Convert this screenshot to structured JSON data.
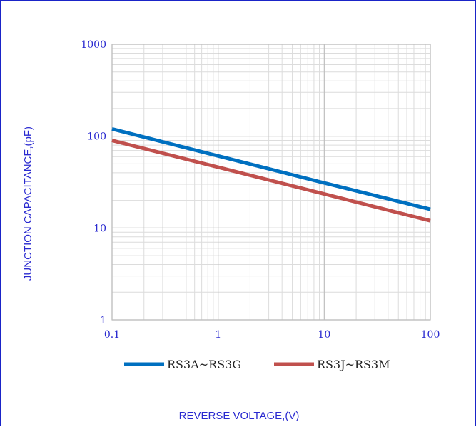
{
  "chart_data": {
    "type": "line",
    "xscale": "log",
    "yscale": "log",
    "xlim": [
      0.1,
      100
    ],
    "ylim": [
      1,
      1000
    ],
    "x_ticks": [
      "0.1",
      "1",
      "10",
      "100"
    ],
    "y_ticks": [
      "1",
      "10",
      "100",
      "1000"
    ],
    "xlabel": "REVERSE VOLTAGE,(V)",
    "ylabel": "JUNCTION CAPACITANCE,(pF)",
    "grid": true,
    "legend_position": "bottom",
    "series": [
      {
        "name": "RS3A~RS3G",
        "color": "#0070c0",
        "x": [
          0.1,
          1,
          10,
          100
        ],
        "y": [
          120,
          61,
          31,
          16
        ]
      },
      {
        "name": "RS3J~RS3M",
        "color": "#c0504d",
        "x": [
          0.1,
          1,
          10,
          100
        ],
        "y": [
          90,
          46,
          23.5,
          12
        ]
      }
    ]
  }
}
